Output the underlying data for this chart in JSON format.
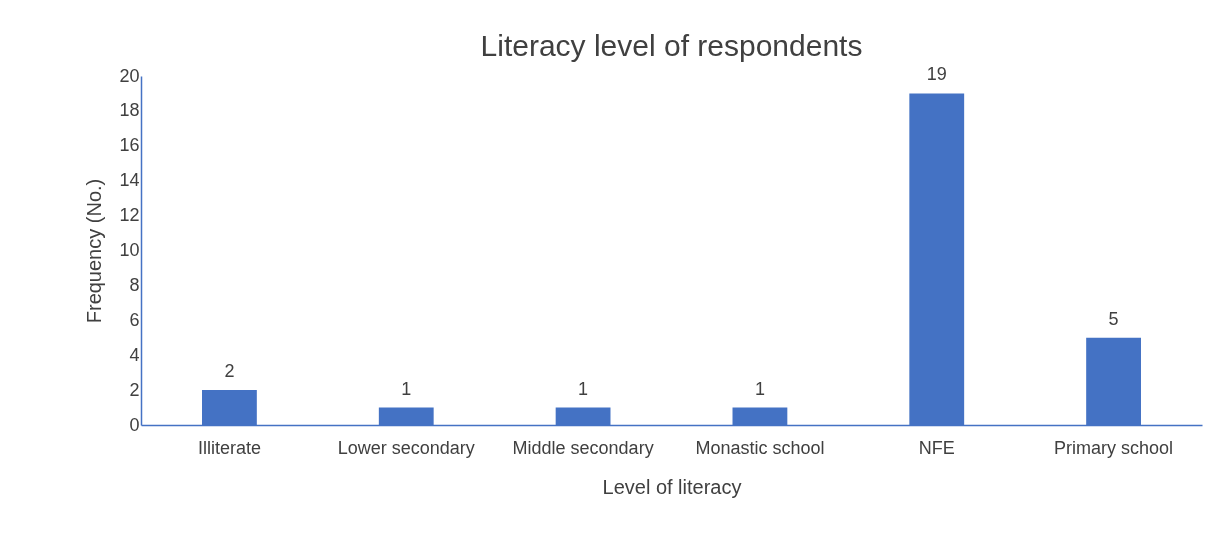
{
  "chart_data": {
    "type": "bar",
    "title": "Literacy level of respondents",
    "xlabel": "Level of literacy",
    "ylabel": "Frequency (No.)",
    "categories": [
      "Illiterate",
      "Lower secondary",
      "Middle secondary",
      "Monastic school",
      "NFE",
      "Primary school"
    ],
    "values": [
      2,
      1,
      1,
      1,
      19,
      5
    ],
    "color": "#4472c4",
    "ylim": [
      0,
      20
    ],
    "yticks": [
      0,
      2,
      4,
      6,
      8,
      10,
      12,
      14,
      16,
      18,
      20
    ],
    "grid": false,
    "data_labels": true
  }
}
